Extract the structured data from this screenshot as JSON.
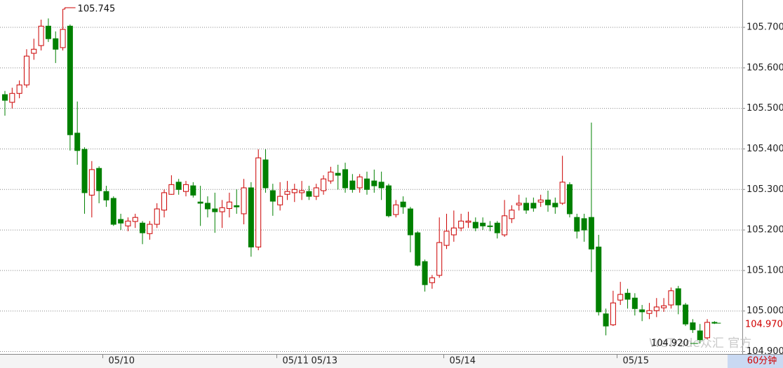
{
  "chart_data": {
    "type": "candlestick",
    "categories": [
      null,
      null,
      null,
      null,
      null,
      null,
      null,
      null,
      null,
      null,
      null,
      null,
      null,
      null,
      "05/10",
      null,
      null,
      null,
      null,
      null,
      null,
      null,
      null,
      null,
      null,
      null,
      null,
      null,
      null,
      null,
      null,
      null,
      null,
      null,
      null,
      null,
      null,
      null,
      "05/11",
      null,
      null,
      null,
      "05/13",
      null,
      null,
      null,
      null,
      null,
      null,
      null,
      null,
      null,
      null,
      null,
      null,
      null,
      null,
      null,
      null,
      null,
      null,
      "05/14",
      null,
      null,
      null,
      null,
      null,
      null,
      null,
      null,
      null,
      null,
      null,
      null,
      null,
      null,
      null,
      null,
      null,
      null,
      null,
      null,
      null,
      null,
      null,
      "05/15",
      null,
      null,
      null,
      null,
      null,
      null,
      null,
      null,
      null,
      null,
      null,
      null,
      null
    ],
    "open": [
      105.534,
      105.515,
      105.537,
      105.558,
      105.636,
      105.655,
      105.703,
      105.672,
      105.65,
      105.703,
      105.439,
      105.399,
      105.286,
      105.352,
      105.295,
      105.278,
      105.226,
      105.21,
      105.221,
      105.217,
      105.191,
      105.214,
      105.249,
      105.288,
      105.318,
      105.295,
      105.309,
      105.269,
      105.266,
      105.252,
      105.245,
      105.253,
      105.26,
      105.24,
      105.304,
      105.158,
      105.373,
      105.297,
      105.262,
      105.288,
      105.292,
      105.292,
      105.295,
      105.283,
      105.297,
      105.321,
      105.34,
      105.349,
      105.321,
      105.304,
      105.326,
      105.321,
      105.318,
      105.309,
      105.238,
      105.269,
      105.252,
      105.193,
      105.122,
      105.07,
      105.088,
      105.162,
      105.188,
      105.205,
      105.219,
      105.219,
      105.217,
      105.21,
      105.217,
      105.188,
      105.228,
      105.262,
      105.266,
      105.266,
      105.269,
      105.274,
      105.266,
      105.266,
      105.312,
      105.231,
      105.228,
      105.231,
      105.158,
      104.993,
      104.966,
      105.027,
      105.044,
      105.032,
      105.003,
      104.994,
      105.001,
      105.008,
      105.015,
      105.055,
      105.015,
      104.971,
      104.951,
      104.934,
      104.972
    ],
    "high": [
      105.543,
      105.551,
      105.569,
      105.646,
      105.672,
      105.719,
      105.722,
      105.69,
      105.745,
      105.707,
      105.517,
      105.404,
      105.37,
      105.357,
      105.309,
      105.283,
      105.24,
      105.231,
      105.24,
      105.222,
      105.222,
      105.266,
      105.3,
      105.335,
      105.326,
      105.321,
      105.318,
      105.309,
      105.283,
      105.292,
      105.274,
      105.292,
      105.3,
      105.326,
      105.318,
      105.399,
      105.399,
      105.314,
      105.318,
      105.321,
      105.314,
      105.321,
      105.309,
      105.314,
      105.335,
      105.356,
      105.361,
      105.366,
      105.338,
      105.338,
      105.344,
      105.349,
      105.344,
      105.314,
      105.274,
      105.283,
      105.257,
      105.197,
      105.127,
      105.089,
      105.231,
      105.24,
      105.248,
      105.24,
      105.245,
      105.231,
      105.231,
      105.222,
      105.222,
      105.274,
      105.261,
      105.287,
      105.28,
      105.28,
      105.287,
      105.297,
      105.28,
      105.383,
      105.318,
      105.24,
      105.24,
      105.465,
      105.188,
      105.006,
      105.05,
      105.072,
      105.055,
      105.044,
      105.015,
      105.02,
      105.032,
      105.032,
      105.058,
      105.062,
      105.02,
      104.98,
      104.968,
      104.98,
      104.975
    ],
    "low": [
      105.482,
      105.5,
      105.525,
      105.551,
      105.62,
      105.643,
      105.664,
      105.612,
      105.643,
      105.396,
      105.361,
      105.24,
      105.231,
      105.266,
      105.257,
      105.21,
      105.2,
      105.197,
      105.205,
      105.165,
      105.176,
      105.205,
      105.231,
      105.287,
      105.287,
      105.283,
      105.28,
      105.21,
      105.231,
      105.193,
      105.205,
      105.231,
      105.24,
      105.214,
      105.134,
      105.15,
      105.292,
      105.235,
      105.248,
      105.274,
      105.269,
      105.274,
      105.274,
      105.274,
      105.287,
      105.314,
      105.3,
      105.292,
      105.292,
      105.292,
      105.287,
      105.292,
      105.274,
      105.231,
      105.231,
      105.24,
      105.145,
      105.11,
      105.048,
      105.055,
      105.082,
      105.153,
      105.171,
      105.197,
      105.205,
      105.197,
      105.2,
      105.197,
      105.179,
      105.183,
      105.217,
      105.248,
      105.24,
      105.245,
      105.257,
      105.245,
      105.24,
      105.262,
      105.231,
      105.179,
      105.171,
      105.096,
      104.989,
      104.94,
      104.963,
      105.015,
      105.006,
      104.989,
      104.975,
      104.98,
      104.985,
      104.998,
      105.006,
      104.992,
      104.963,
      104.946,
      104.92,
      104.93,
      104.968
    ],
    "close": [
      105.52,
      105.537,
      105.558,
      105.629,
      105.646,
      105.703,
      105.672,
      105.646,
      105.695,
      105.435,
      105.396,
      105.292,
      105.349,
      105.297,
      105.274,
      105.214,
      105.217,
      105.222,
      105.231,
      105.193,
      105.214,
      105.252,
      105.292,
      105.312,
      105.3,
      105.312,
      105.286,
      105.266,
      105.252,
      105.245,
      105.255,
      105.269,
      105.257,
      105.304,
      105.158,
      105.378,
      105.304,
      105.271,
      105.283,
      105.295,
      105.3,
      105.297,
      105.283,
      105.304,
      105.326,
      105.343,
      105.335,
      105.304,
      105.3,
      105.331,
      105.3,
      105.309,
      105.304,
      105.235,
      105.262,
      105.257,
      105.188,
      105.113,
      105.065,
      105.082,
      105.169,
      105.197,
      105.205,
      105.222,
      105.222,
      105.205,
      105.21,
      105.209,
      105.193,
      105.235,
      105.249,
      105.266,
      105.249,
      105.254,
      105.274,
      105.262,
      105.257,
      105.318,
      105.24,
      105.197,
      105.2,
      105.153,
      104.998,
      104.963,
      105.02,
      105.041,
      105.029,
      105.006,
      104.998,
      105.001,
      105.01,
      105.013,
      105.05,
      105.015,
      104.968,
      104.954,
      104.929,
      104.972,
      104.97
    ],
    "up_color": "#cc0000",
    "down_color": "#008000",
    "ylim": [
      104.894,
      105.7675
    ],
    "yticks": [
      {
        "value": 104.9,
        "label": "104.900"
      },
      {
        "value": 105.0,
        "label": "105.000"
      },
      {
        "value": 105.1,
        "label": "105.100"
      },
      {
        "value": 105.2,
        "label": "105.200"
      },
      {
        "value": 105.3,
        "label": "105.300"
      },
      {
        "value": 105.4,
        "label": "105.400"
      },
      {
        "value": 105.5,
        "label": "105.500"
      },
      {
        "value": 105.6,
        "label": "105.600"
      },
      {
        "value": 105.7,
        "label": "105.700"
      }
    ],
    "grid": true,
    "max_label": "105.745",
    "min_label": "104.920",
    "last_price_label": "104.970",
    "timeframe": "60分钟",
    "watermark": "WeTrade众汇 官方"
  }
}
